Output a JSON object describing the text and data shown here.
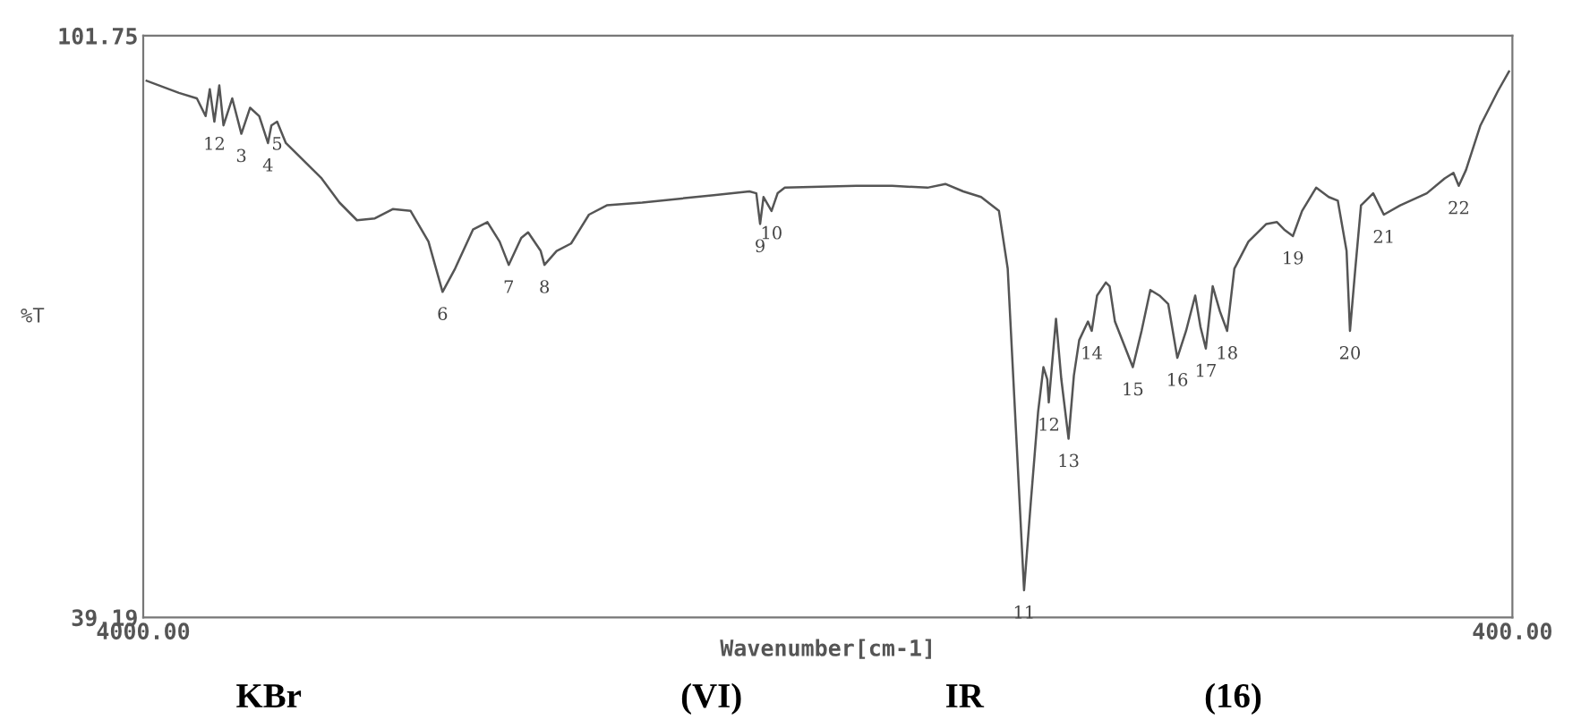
{
  "chart_data": {
    "type": "line",
    "xlabel": "Wavenumber[cm-1]",
    "ylabel": "%T",
    "xlim": [
      4000,
      400
    ],
    "xticks": [
      {
        "value": 4000,
        "label": "4000.00"
      },
      {
        "value": 400,
        "label": "400.00"
      }
    ],
    "ylim": [
      39.19,
      101.75
    ],
    "yticks": [
      {
        "value": 39.19,
        "label": "39.19"
      },
      {
        "value": 101.75,
        "label": "101.75"
      }
    ],
    "series": [
      {
        "color": "#555555",
        "x": [
          3991,
          3906,
          3859,
          3836,
          3825,
          3813,
          3800,
          3789,
          3766,
          3742,
          3719,
          3695,
          3672,
          3663,
          3648,
          3625,
          3578,
          3531,
          3484,
          3438,
          3391,
          3344,
          3297,
          3250,
          3213,
          3180,
          3133,
          3095,
          3063,
          3039,
          3006,
          2988,
          2955,
          2945,
          2913,
          2875,
          2828,
          2781,
          2688,
          2500,
          2406,
          2388,
          2378,
          2369,
          2348,
          2332,
          2313,
          2125,
          2031,
          1938,
          1891,
          1844,
          1797,
          1750,
          1727,
          1703,
          1684,
          1666,
          1647,
          1633,
          1623,
          1619,
          1600,
          1586,
          1567,
          1553,
          1539,
          1516,
          1506,
          1492,
          1469,
          1459,
          1445,
          1398,
          1375,
          1352,
          1328,
          1305,
          1281,
          1258,
          1234,
          1220,
          1206,
          1188,
          1169,
          1150,
          1131,
          1094,
          1047,
          1019,
          1000,
          977,
          953,
          916,
          883,
          859,
          836,
          827,
          813,
          798,
          766,
          738,
          695,
          625,
          578,
          555,
          541,
          522,
          484,
          438,
          409
        ],
        "values": [
          96.9,
          95.6,
          95.0,
          93.1,
          96.0,
          92.5,
          96.4,
          92.1,
          95.0,
          91.2,
          94.0,
          93.1,
          90.2,
          92.1,
          92.5,
          90.2,
          88.3,
          86.4,
          83.8,
          81.9,
          82.1,
          83.1,
          82.9,
          79.6,
          74.2,
          76.7,
          80.9,
          81.7,
          79.6,
          77.1,
          80.0,
          80.6,
          78.6,
          77.1,
          78.6,
          79.4,
          82.5,
          83.5,
          83.8,
          84.6,
          85.0,
          84.8,
          81.5,
          84.4,
          82.9,
          84.8,
          85.4,
          85.6,
          85.6,
          85.4,
          85.8,
          85.0,
          84.4,
          82.9,
          76.7,
          57.5,
          42.1,
          51.7,
          61.3,
          66.1,
          64.8,
          62.3,
          71.3,
          64.8,
          58.4,
          65.2,
          69.0,
          71.0,
          70.0,
          73.8,
          75.2,
          74.8,
          71.0,
          66.1,
          70.0,
          74.4,
          73.8,
          72.9,
          67.1,
          70.0,
          73.8,
          70.4,
          68.1,
          74.8,
          72.1,
          70.0,
          76.7,
          79.6,
          81.5,
          81.7,
          80.9,
          80.2,
          82.9,
          85.4,
          84.4,
          84.0,
          78.6,
          70.0,
          76.7,
          83.5,
          84.8,
          82.5,
          83.5,
          84.8,
          86.4,
          87.0,
          85.6,
          87.3,
          92.1,
          95.8,
          97.9
        ]
      }
    ],
    "annotations": [
      {
        "text": "12",
        "x": 3813,
        "y": 92.5
      },
      {
        "text": "3",
        "x": 3742,
        "y": 91.2
      },
      {
        "text": "4",
        "x": 3672,
        "y": 90.2
      },
      {
        "text": "5",
        "x": 3648,
        "y": 92.5
      },
      {
        "text": "6",
        "x": 3213,
        "y": 74.2
      },
      {
        "text": "7",
        "x": 3039,
        "y": 77.1
      },
      {
        "text": "8",
        "x": 2945,
        "y": 77.1
      },
      {
        "text": "9",
        "x": 2378,
        "y": 81.5
      },
      {
        "text": "10",
        "x": 2348,
        "y": 82.9
      },
      {
        "text": "11",
        "x": 1684,
        "y": 42.1
      },
      {
        "text": "12",
        "x": 1619,
        "y": 62.3
      },
      {
        "text": "13",
        "x": 1567,
        "y": 58.4
      },
      {
        "text": "14",
        "x": 1506,
        "y": 70.0
      },
      {
        "text": "15",
        "x": 1398,
        "y": 66.1
      },
      {
        "text": "16",
        "x": 1281,
        "y": 67.1
      },
      {
        "text": "17",
        "x": 1206,
        "y": 68.1
      },
      {
        "text": "18",
        "x": 1150,
        "y": 70.0
      },
      {
        "text": "19",
        "x": 977,
        "y": 80.2
      },
      {
        "text": "20",
        "x": 827,
        "y": 70.0
      },
      {
        "text": "21",
        "x": 738,
        "y": 82.5
      },
      {
        "text": "22",
        "x": 541,
        "y": 85.6
      },
      "KBr",
      "(VI)",
      "IR",
      "(16)"
    ]
  }
}
